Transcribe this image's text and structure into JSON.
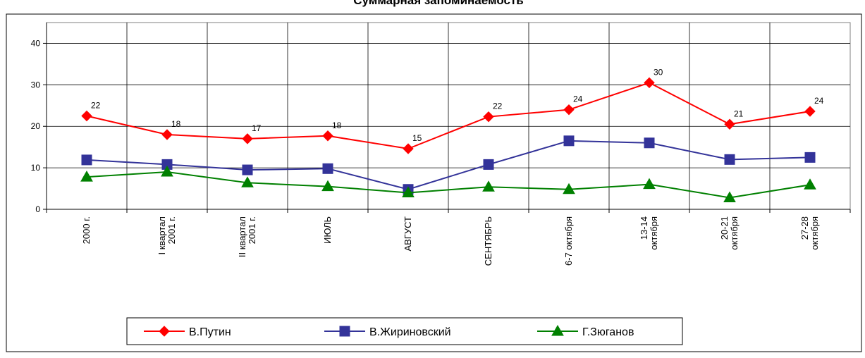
{
  "chart_data": {
    "type": "line",
    "title": "Суммарная запоминаемость",
    "categories": [
      [
        "2000 г."
      ],
      [
        "I квартал",
        "2001 г."
      ],
      [
        "II квартал",
        "2001 г."
      ],
      [
        "ИЮЛЬ"
      ],
      [
        "АВГУСТ"
      ],
      [
        "СЕНТЯБРЬ"
      ],
      [
        "6-7 октября"
      ],
      [
        "13-14",
        "октября"
      ],
      [
        "20-21",
        "октября"
      ],
      [
        "27-28",
        "октября"
      ]
    ],
    "ylim": [
      0,
      45
    ],
    "yticks": [
      0,
      10,
      20,
      30,
      40
    ],
    "grid": true,
    "legend_position": "bottom",
    "series": [
      {
        "name": "В.Путин",
        "color": "#ff0000",
        "marker": "diamond",
        "values": [
          22.5,
          18,
          17,
          17.7,
          14.6,
          22.3,
          24,
          30.5,
          20.5,
          23.6
        ],
        "labels": [
          "22",
          "18",
          "17",
          "18",
          "15",
          "22",
          "24",
          "30",
          "21",
          "24"
        ]
      },
      {
        "name": "В.Жириновский",
        "color": "#333399",
        "marker": "square",
        "values": [
          11.9,
          10.8,
          9.5,
          9.8,
          4.8,
          10.8,
          16.5,
          16,
          12,
          12.5
        ]
      },
      {
        "name": "Г.Зюганов",
        "color": "#008000",
        "marker": "triangle",
        "values": [
          7.8,
          9,
          6.4,
          5.5,
          4,
          5.4,
          4.8,
          6,
          2.8,
          5.9
        ]
      }
    ]
  }
}
